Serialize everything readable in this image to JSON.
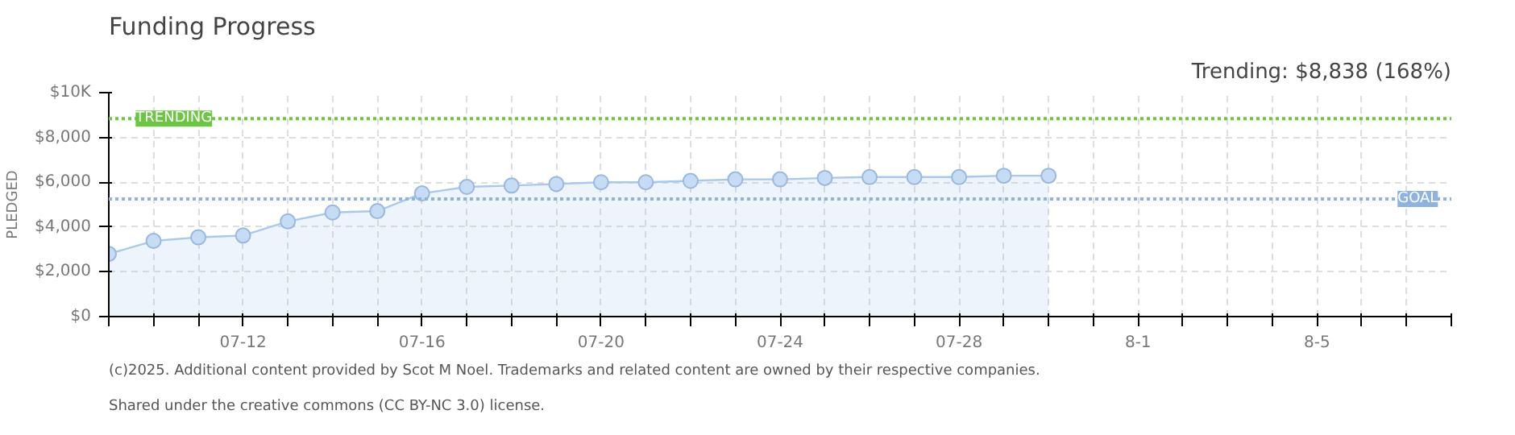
{
  "chart_data": {
    "type": "area",
    "title": "Funding Progress",
    "ylabel": "PLEDGED",
    "annotations": [
      "Trending: $8,838 (168%)",
      "(c)2025. Additional content provided by Scot M Noel. Trademarks and related content are owned by their respective companies.",
      "Shared under the creative commons (CC BY-NC 3.0) license."
    ],
    "x": [
      "2025-07-09",
      "2025-07-10",
      "2025-07-11",
      "2025-07-12",
      "2025-07-13",
      "2025-07-14",
      "2025-07-15",
      "2025-07-16",
      "2025-07-17",
      "2025-07-18",
      "2025-07-19",
      "2025-07-20",
      "2025-07-21",
      "2025-07-22",
      "2025-07-23",
      "2025-07-24",
      "2025-07-25",
      "2025-07-26",
      "2025-07-27",
      "2025-07-28",
      "2025-07-29",
      "2025-07-30"
    ],
    "series": [
      {
        "color": "#a9c8ee",
        "values": [
          2800,
          3380,
          3540,
          3620,
          4250,
          4650,
          4710,
          5500,
          5790,
          5850,
          5920,
          6000,
          6000,
          6060,
          6130,
          6130,
          6190,
          6230,
          6230,
          6230,
          6290,
          6290
        ]
      }
    ],
    "marker": "circle",
    "xlim": [
      "2025-07-09",
      "2025-08-08"
    ],
    "xticks": [
      {
        "value": "2025-07-09",
        "label": null
      },
      {
        "value": "2025-07-10",
        "label": null
      },
      {
        "value": "2025-07-11",
        "label": null
      },
      {
        "value": "2025-07-12",
        "label": "07-12"
      },
      {
        "value": "2025-07-13",
        "label": null
      },
      {
        "value": "2025-07-14",
        "label": null
      },
      {
        "value": "2025-07-15",
        "label": null
      },
      {
        "value": "2025-07-16",
        "label": "07-16"
      },
      {
        "value": "2025-07-17",
        "label": null
      },
      {
        "value": "2025-07-18",
        "label": null
      },
      {
        "value": "2025-07-19",
        "label": null
      },
      {
        "value": "2025-07-20",
        "label": "07-20"
      },
      {
        "value": "2025-07-21",
        "label": null
      },
      {
        "value": "2025-07-22",
        "label": null
      },
      {
        "value": "2025-07-23",
        "label": null
      },
      {
        "value": "2025-07-24",
        "label": "07-24"
      },
      {
        "value": "2025-07-25",
        "label": null
      },
      {
        "value": "2025-07-26",
        "label": null
      },
      {
        "value": "2025-07-27",
        "label": null
      },
      {
        "value": "2025-07-28",
        "label": "07-28"
      },
      {
        "value": "2025-07-29",
        "label": null
      },
      {
        "value": "2025-07-30",
        "label": null
      },
      {
        "value": "2025-07-31",
        "label": null
      },
      {
        "value": "2025-08-01",
        "label": "8-1"
      },
      {
        "value": "2025-08-02",
        "label": null
      },
      {
        "value": "2025-08-03",
        "label": null
      },
      {
        "value": "2025-08-04",
        "label": null
      },
      {
        "value": "2025-08-05",
        "label": "8-5"
      },
      {
        "value": "2025-08-06",
        "label": null
      },
      {
        "value": "2025-08-07",
        "label": null
      },
      {
        "value": "2025-08-08",
        "label": null
      }
    ],
    "ylim": [
      0,
      10000
    ],
    "yticks": [
      {
        "value": 0,
        "label": "$0"
      },
      {
        "value": 2000,
        "label": "$2,000"
      },
      {
        "value": 4000,
        "label": "$4,000"
      },
      {
        "value": 6000,
        "label": "$6,000"
      },
      {
        "value": 8000,
        "label": "$8,000"
      },
      {
        "value": 10000,
        "label": "$10K"
      }
    ],
    "ref_lines": [
      {
        "axis": "y",
        "value": 8838,
        "label": "TRENDING",
        "color": "#6cc644",
        "line_style": "dotted"
      },
      {
        "axis": "y",
        "value": 5250,
        "label": "GOAL",
        "color": "#8fb3df",
        "line_style": "dotted"
      }
    ],
    "grid": true
  }
}
